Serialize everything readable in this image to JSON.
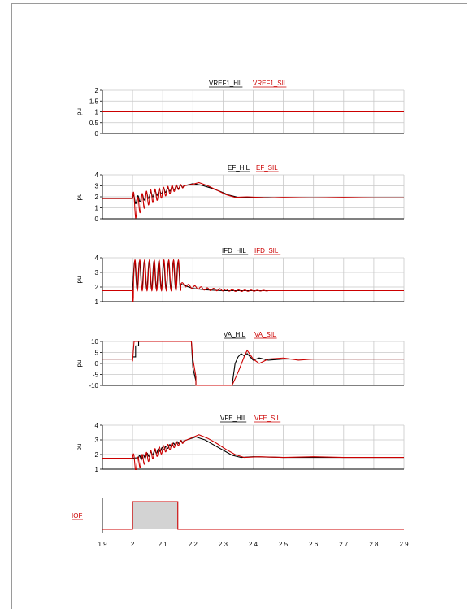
{
  "chart_data": [
    {
      "type": "line",
      "panel": "vref1",
      "ylabel": "pu",
      "ylim": [
        0,
        2
      ],
      "yticks": [
        0,
        0.5,
        1,
        1.5,
        2
      ],
      "ytick_labels": [
        "0",
        "0.5",
        "1",
        "1.5",
        "2"
      ],
      "xlim": [
        1.9,
        2.9
      ],
      "grid": true,
      "legend": [
        {
          "name": "VREF1_HIL",
          "color": "#000000"
        },
        {
          "name": "VREF1_SIL",
          "color": "#cc0000"
        }
      ],
      "series": [
        {
          "name": "VREF1_HIL",
          "x": [
            1.9,
            2.9
          ],
          "y": [
            1.0,
            1.0
          ]
        },
        {
          "name": "VREF1_SIL",
          "x": [
            1.9,
            2.9
          ],
          "y": [
            1.0,
            1.0
          ]
        }
      ]
    },
    {
      "type": "line",
      "panel": "ef",
      "ylabel": "pu",
      "ylim": [
        0,
        4
      ],
      "yticks": [
        0,
        1,
        2,
        3,
        4
      ],
      "ytick_labels": [
        "0",
        "1",
        "2",
        "3",
        "4"
      ],
      "xlim": [
        1.9,
        2.9
      ],
      "grid": true,
      "legend": [
        {
          "name": "EF_HIL",
          "color": "#000000"
        },
        {
          "name": "EF_SIL",
          "color": "#cc0000"
        }
      ],
      "series": [
        {
          "name": "EF_HIL",
          "x": [
            1.9,
            2.0,
            2.01,
            2.03,
            2.05,
            2.08,
            2.11,
            2.14,
            2.17,
            2.2,
            2.23,
            2.26,
            2.29,
            2.32,
            2.35,
            2.4,
            2.5,
            2.6,
            2.7,
            2.8,
            2.9
          ],
          "y": [
            1.85,
            1.85,
            1.7,
            1.9,
            2.1,
            2.35,
            2.6,
            2.8,
            3.0,
            3.2,
            3.05,
            2.8,
            2.5,
            2.15,
            1.95,
            1.95,
            1.9,
            1.9,
            1.9,
            1.9,
            1.9
          ]
        },
        {
          "name": "EF_SIL",
          "x": [
            1.9,
            2.0,
            2.01,
            2.03,
            2.05,
            2.08,
            2.11,
            2.14,
            2.17,
            2.2,
            2.22,
            2.25,
            2.28,
            2.31,
            2.34,
            2.38,
            2.45,
            2.5,
            2.6,
            2.7,
            2.8,
            2.9
          ],
          "y": [
            1.85,
            1.85,
            0.9,
            1.5,
            1.9,
            2.2,
            2.5,
            2.8,
            3.0,
            3.15,
            3.3,
            3.0,
            2.6,
            2.2,
            1.95,
            2.0,
            1.9,
            1.95,
            1.9,
            1.95,
            1.9,
            1.9
          ]
        }
      ]
    },
    {
      "type": "line",
      "panel": "ifd",
      "ylabel": "pu",
      "ylim": [
        1,
        4
      ],
      "yticks": [
        1,
        2,
        3,
        4
      ],
      "ytick_labels": [
        "1",
        "2",
        "3",
        "4"
      ],
      "xlim": [
        1.9,
        2.9
      ],
      "grid": true,
      "legend": [
        {
          "name": "IFD_HIL",
          "color": "#000000"
        },
        {
          "name": "IFD_SIL",
          "color": "#cc0000"
        }
      ],
      "series": [
        {
          "name": "IFD_HIL",
          "x": [
            1.9,
            2.0,
            2.02,
            2.05,
            2.1,
            2.15,
            2.16,
            2.2,
            2.25,
            2.3,
            2.4,
            2.5,
            2.6,
            2.7,
            2.8,
            2.9
          ],
          "y": [
            1.75,
            1.75,
            2.7,
            2.75,
            2.8,
            2.75,
            2.2,
            1.9,
            1.8,
            1.75,
            1.75,
            1.75,
            1.75,
            1.75,
            1.75,
            1.75
          ]
        },
        {
          "name": "IFD_SIL",
          "x": [
            1.9,
            2.0,
            2.16,
            2.2,
            2.25,
            2.3,
            2.35,
            2.4,
            2.5,
            2.6,
            2.7,
            2.8,
            2.9
          ],
          "y": [
            1.75,
            1.75,
            2.2,
            2.0,
            1.85,
            1.8,
            1.75,
            1.75,
            1.75,
            1.75,
            1.75,
            1.75,
            1.75
          ]
        }
      ]
    },
    {
      "type": "line",
      "panel": "va",
      "ylabel": "pu",
      "ylim": [
        -10,
        10
      ],
      "yticks": [
        -10,
        -5,
        0,
        5,
        10
      ],
      "ytick_labels": [
        "-10",
        "-5",
        "0",
        "5",
        "10"
      ],
      "xlim": [
        1.9,
        2.9
      ],
      "grid": true,
      "legend": [
        {
          "name": "VA_HIL",
          "color": "#000000"
        },
        {
          "name": "VA_SIL",
          "color": "#cc0000"
        }
      ],
      "series": [
        {
          "name": "VA_HIL",
          "x": [
            1.9,
            2.0,
            2.0,
            2.01,
            2.01,
            2.02,
            2.02,
            2.195,
            2.2,
            2.21,
            2.21,
            2.33,
            2.34,
            2.35,
            2.36,
            2.37,
            2.38,
            2.39,
            2.4,
            2.42,
            2.45,
            2.5,
            2.6,
            2.7,
            2.8,
            2.9
          ],
          "y": [
            2.0,
            2.0,
            3.0,
            3.0,
            8.0,
            8.0,
            10.0,
            10.0,
            -2.0,
            -8.0,
            -10.0,
            -10.0,
            0.0,
            3.0,
            4.5,
            3.5,
            4.5,
            3.0,
            1.5,
            2.5,
            1.5,
            2.0,
            2.0,
            2.0,
            2.0,
            2.0
          ]
        },
        {
          "name": "VA_SIL",
          "x": [
            1.9,
            2.0,
            2.0,
            2.005,
            2.195,
            2.2,
            2.21,
            2.21,
            2.33,
            2.35,
            2.37,
            2.38,
            2.4,
            2.42,
            2.45,
            2.5,
            2.55,
            2.6,
            2.7,
            2.8,
            2.9
          ],
          "y": [
            2.0,
            2.0,
            1.0,
            10.0,
            10.0,
            2.0,
            -6.0,
            -10.0,
            -10.0,
            -4.0,
            3.0,
            6.0,
            2.0,
            0.0,
            2.0,
            2.5,
            1.5,
            2.0,
            2.0,
            2.0,
            2.0
          ]
        }
      ]
    },
    {
      "type": "line",
      "panel": "vfe",
      "ylabel": "pu",
      "ylim": [
        1,
        4
      ],
      "yticks": [
        1,
        2,
        3,
        4
      ],
      "ytick_labels": [
        "1",
        "2",
        "3",
        "4"
      ],
      "xlim": [
        1.9,
        2.9
      ],
      "grid": true,
      "legend": [
        {
          "name": "VFE_HIL",
          "color": "#000000"
        },
        {
          "name": "VFE_SIL",
          "color": "#cc0000"
        }
      ],
      "series": [
        {
          "name": "VFE_HIL",
          "x": [
            1.9,
            2.0,
            2.03,
            2.06,
            2.09,
            2.12,
            2.15,
            2.18,
            2.21,
            2.24,
            2.27,
            2.3,
            2.33,
            2.36,
            2.4,
            2.5,
            2.6,
            2.7,
            2.8,
            2.9
          ],
          "y": [
            1.75,
            1.75,
            1.8,
            2.05,
            2.3,
            2.55,
            2.8,
            3.0,
            3.2,
            3.0,
            2.65,
            2.3,
            1.95,
            1.8,
            1.85,
            1.8,
            1.8,
            1.8,
            1.8,
            1.8
          ]
        },
        {
          "name": "VFE_SIL",
          "x": [
            1.9,
            2.0,
            2.01,
            2.03,
            2.06,
            2.09,
            2.12,
            2.15,
            2.18,
            2.22,
            2.25,
            2.28,
            2.31,
            2.34,
            2.37,
            2.42,
            2.5,
            2.6,
            2.7,
            2.8,
            2.9
          ],
          "y": [
            1.75,
            1.75,
            1.3,
            1.6,
            1.95,
            2.25,
            2.5,
            2.75,
            3.0,
            3.35,
            3.1,
            2.75,
            2.35,
            2.0,
            1.8,
            1.85,
            1.8,
            1.85,
            1.8,
            1.8,
            1.8
          ]
        }
      ]
    },
    {
      "type": "area",
      "panel": "iof",
      "xlim": [
        1.9,
        2.9
      ],
      "ylim": [
        0,
        1
      ],
      "label": "IOF",
      "label_color": "#cc0000",
      "xticks": [
        1.9,
        2.0,
        2.1,
        2.2,
        2.3,
        2.4,
        2.5,
        2.6,
        2.7,
        2.8,
        2.9
      ],
      "xtick_labels": [
        "1.9",
        "2",
        "2.1",
        "2.2",
        "2.3",
        "2.4",
        "2.5",
        "2.6",
        "2.7",
        "2.8",
        "2.9"
      ],
      "series": [
        {
          "name": "IOF",
          "x": [
            1.9,
            2.0,
            2.0,
            2.15,
            2.15,
            2.9
          ],
          "y": [
            0,
            0,
            1,
            1,
            0,
            0
          ],
          "fill": "#d3d3d3",
          "color": "#cc0000"
        }
      ]
    }
  ],
  "oscillation": {
    "ef": {
      "start": 2.0,
      "end": 2.17,
      "cycles": 12,
      "amp_start": 0.9,
      "amp_end": 0.15
    },
    "ifd": {
      "start": 2.0,
      "end": 2.16,
      "cycles": 10,
      "amp_start": 1.1,
      "amp_end": 1.0
    },
    "ifd_tail": {
      "start": 2.16,
      "end": 2.45,
      "cycles": 14,
      "amp_start": 0.12,
      "amp_end": 0.02
    },
    "vfe": {
      "start": 2.0,
      "end": 2.17,
      "cycles": 12,
      "amp_start": 0.45,
      "amp_end": 0.12
    }
  },
  "colors": {
    "hil": "#000000",
    "sil": "#cc0000",
    "grid": "#c8c8c8",
    "axis": "#000000"
  }
}
